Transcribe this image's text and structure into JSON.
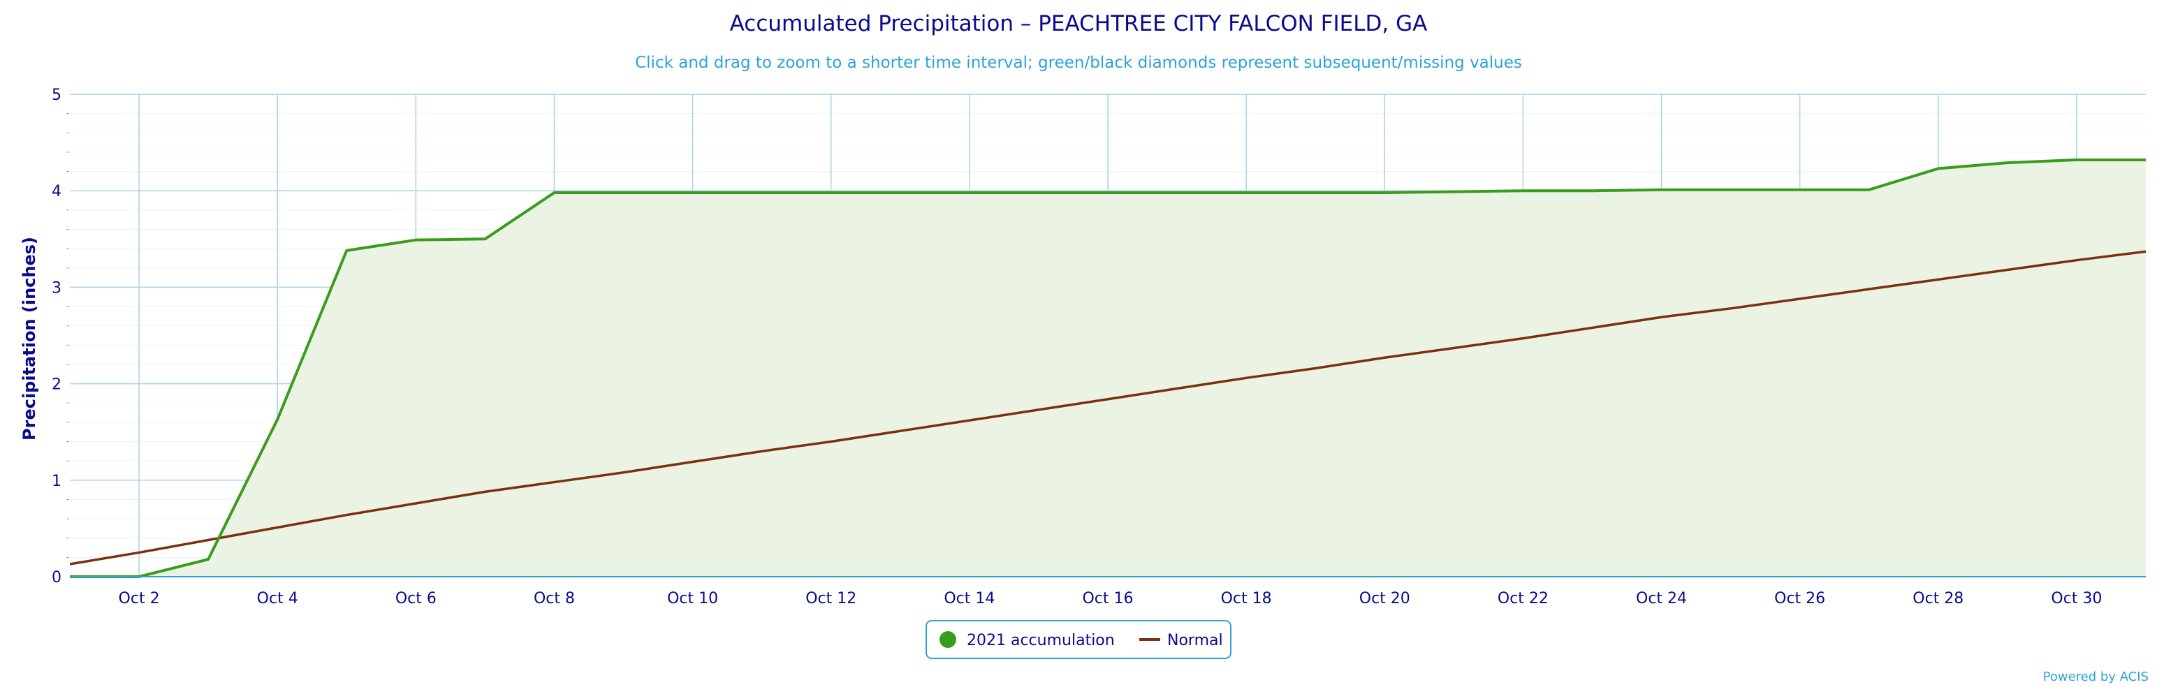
{
  "chart_data": {
    "type": "area",
    "title": "Accumulated Precipitation – PEACHTREE CITY FALCON FIELD, GA",
    "subtitle": "Click and drag to zoom to a shorter time interval; green/black diamonds represent subsequent/missing values",
    "xlabel": "",
    "ylabel": "Precipitation (inches)",
    "ylim": [
      0,
      5
    ],
    "yticks": [
      "0",
      "1",
      "2",
      "3",
      "4",
      "5"
    ],
    "x": [
      "Oct 1",
      "Oct 2",
      "Oct 3",
      "Oct 4",
      "Oct 5",
      "Oct 6",
      "Oct 7",
      "Oct 8",
      "Oct 9",
      "Oct 10",
      "Oct 11",
      "Oct 12",
      "Oct 13",
      "Oct 14",
      "Oct 15",
      "Oct 16",
      "Oct 17",
      "Oct 18",
      "Oct 19",
      "Oct 20",
      "Oct 21",
      "Oct 22",
      "Oct 23",
      "Oct 24",
      "Oct 25",
      "Oct 26",
      "Oct 27",
      "Oct 28",
      "Oct 29",
      "Oct 30",
      "Oct 31"
    ],
    "xticks": [
      "Oct 2",
      "Oct 4",
      "Oct 6",
      "Oct 8",
      "Oct 10",
      "Oct 12",
      "Oct 14",
      "Oct 16",
      "Oct 18",
      "Oct 20",
      "Oct 22",
      "Oct 24",
      "Oct 26",
      "Oct 28",
      "Oct 30"
    ],
    "series": [
      {
        "name": "2021 accumulation",
        "color": "#3a9c1c",
        "fill": "#eaf3e4",
        "values": [
          0,
          0,
          0.18,
          1.63,
          3.38,
          3.49,
          3.5,
          3.98,
          3.98,
          3.98,
          3.98,
          3.98,
          3.98,
          3.98,
          3.98,
          3.98,
          3.98,
          3.98,
          3.98,
          3.98,
          3.99,
          4.0,
          4.0,
          4.01,
          4.01,
          4.01,
          4.01,
          4.23,
          4.29,
          4.32,
          4.32
        ]
      },
      {
        "name": "Normal",
        "color": "#7b3010",
        "values": [
          0.13,
          0.25,
          0.38,
          0.51,
          0.64,
          0.76,
          0.88,
          0.98,
          1.08,
          1.19,
          1.3,
          1.4,
          1.51,
          1.62,
          1.73,
          1.84,
          1.95,
          2.06,
          2.16,
          2.27,
          2.37,
          2.47,
          2.58,
          2.69,
          2.78,
          2.88,
          2.98,
          3.08,
          3.18,
          3.28,
          3.37
        ]
      }
    ],
    "grid": true,
    "legend": "bottom-center"
  },
  "credit": "Powered by ACIS"
}
